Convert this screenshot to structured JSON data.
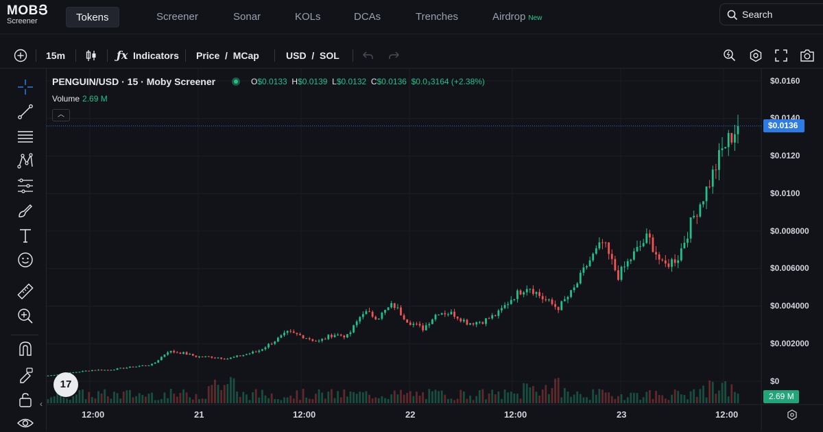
{
  "brand": {
    "word": "MOBՅ",
    "sub": "Screener"
  },
  "nav": {
    "tabs": [
      {
        "label": "Tokens"
      },
      {
        "label": "Screener"
      },
      {
        "label": "Sonar"
      },
      {
        "label": "KOLs"
      },
      {
        "label": "DCAs"
      },
      {
        "label": "Trenches"
      },
      {
        "label": "Airdrop"
      }
    ],
    "airdrop_badge": "New",
    "search_label": "Search"
  },
  "toolbar": {
    "interval": "15m",
    "indicators": "Indicators",
    "price_mcap": "Price  /  MCap",
    "currency": "USD  /  SOL"
  },
  "legend": {
    "title": "PENGUIN/USD · 15 · Moby Screener",
    "open_label": "O",
    "open": "$0.0133",
    "high_label": "H",
    "high": "$0.0139",
    "low_label": "L",
    "low": "$0.0132",
    "close_label": "C",
    "close": "$0.0136",
    "change": "$0.0₃3164 (+2.38%)",
    "volume_label": "Volume",
    "volume": "2.69 M"
  },
  "price_axis": {
    "labels": [
      "$0.0160",
      "$0.0140",
      "$0.0120",
      "$0.0100",
      "$0.008000",
      "$0.006000",
      "$0.004000",
      "$0.002000",
      "$0"
    ],
    "current_price": "$0.0136",
    "volume_tag": "2.69 M"
  },
  "time_axis": {
    "labels": [
      "12:00",
      "21",
      "12:00",
      "22",
      "12:00",
      "23",
      "12:00"
    ]
  },
  "colors": {
    "up": "#22c08a",
    "down": "#f05454",
    "accent": "#2d7ce6"
  },
  "tv_logo": "17",
  "chart_data": {
    "type": "candlestick",
    "title": "PENGUIN/USD · 15 · Moby Screener",
    "xlabel": "",
    "ylabel": "",
    "ylim": [
      0,
      0.0165
    ],
    "x_ticks": [
      "12:00",
      "21",
      "12:00",
      "22",
      "12:00",
      "23",
      "12:00"
    ],
    "anchors_close": [
      0.0003,
      0.0004,
      0.0005,
      0.0006,
      0.0006,
      0.0007,
      0.0008,
      0.0009,
      0.0016,
      0.0015,
      0.0013,
      0.0013,
      0.0012,
      0.0014,
      0.0016,
      0.0021,
      0.0026,
      0.0024,
      0.0021,
      0.0025,
      0.0024,
      0.0037,
      0.0034,
      0.0041,
      0.0032,
      0.0028,
      0.0037,
      0.0036,
      0.0031,
      0.0032,
      0.0036,
      0.0045,
      0.0051,
      0.0044,
      0.0039,
      0.0048,
      0.0063,
      0.0074,
      0.0056,
      0.0067,
      0.0077,
      0.0061,
      0.0066,
      0.0087,
      0.0104,
      0.0124,
      0.0136
    ],
    "last": {
      "open": 0.0133,
      "high": 0.0139,
      "low": 0.0132,
      "close": 0.0136
    },
    "current_volume_millions": 2.69
  }
}
